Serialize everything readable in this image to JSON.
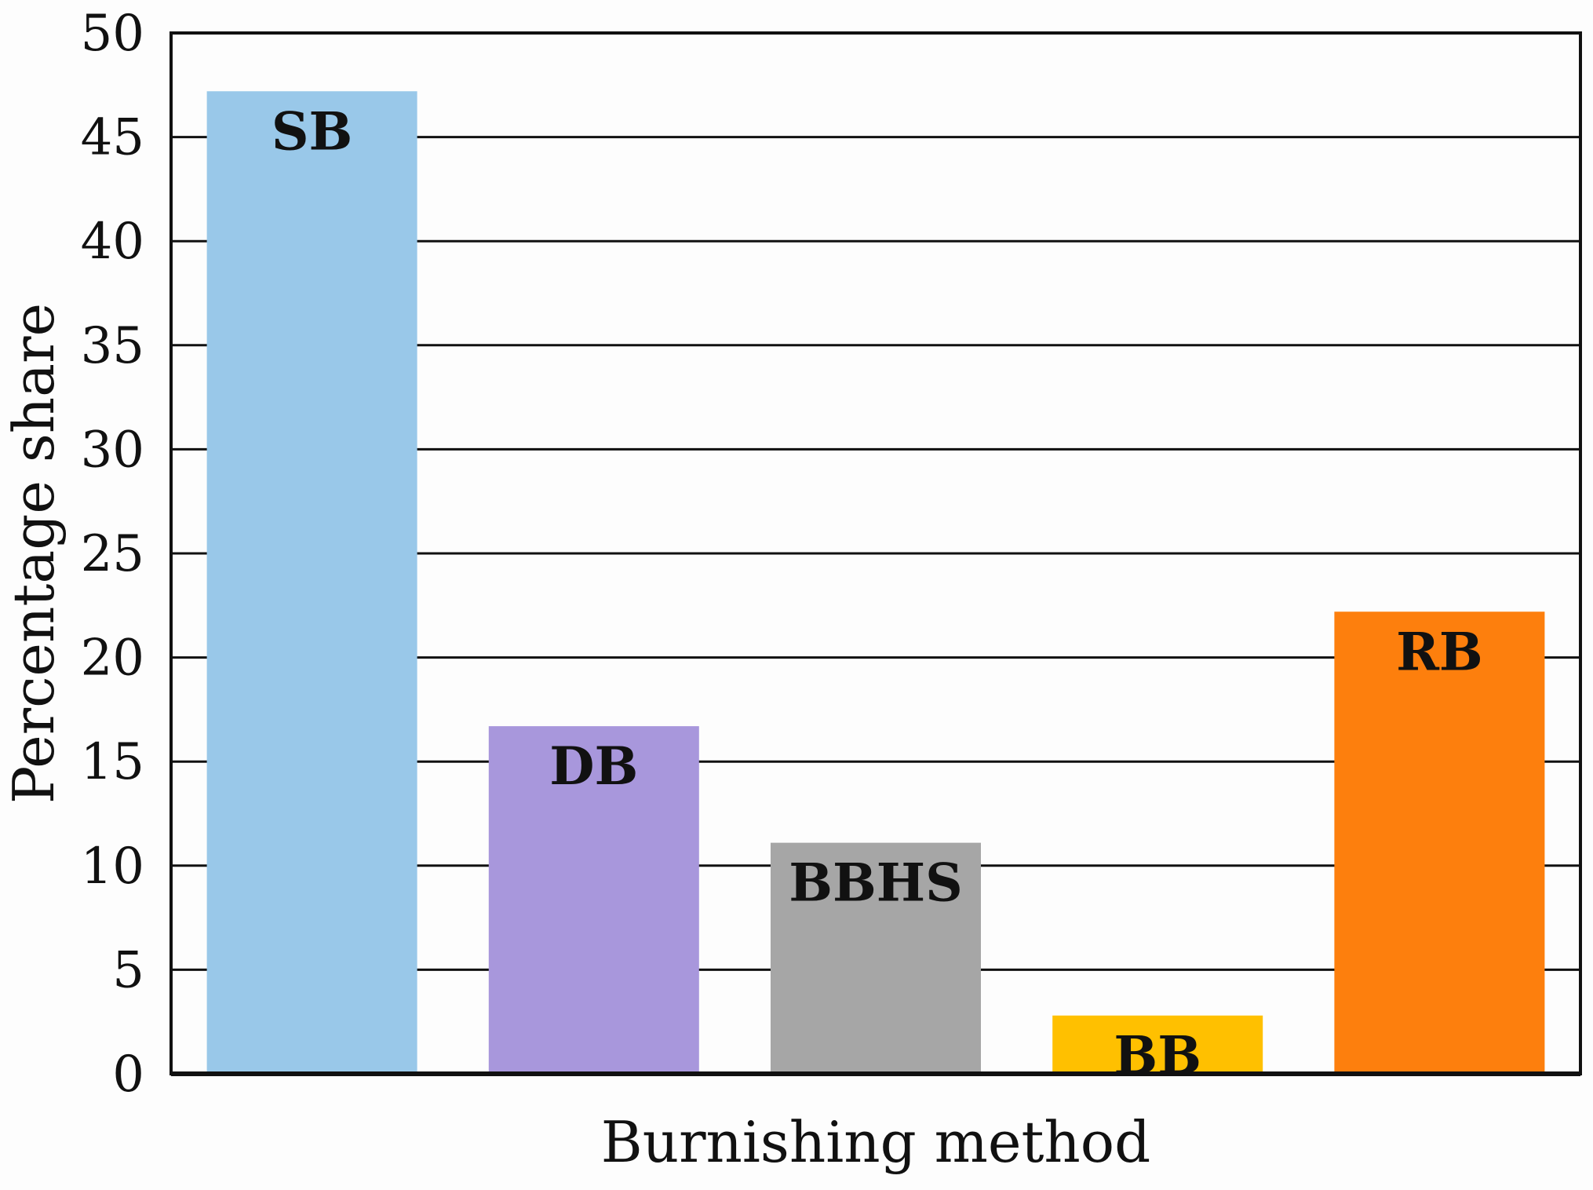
{
  "chart_data": {
    "type": "bar",
    "xlabel": "Burnishing method",
    "ylabel": "Percentage share",
    "ylim": [
      0,
      50
    ],
    "yticks": [
      0,
      5,
      10,
      15,
      20,
      25,
      30,
      35,
      40,
      45,
      50
    ],
    "grid": true,
    "categories": [
      "SB",
      "DB",
      "BBHS",
      "BB",
      "RB"
    ],
    "values": [
      47.2,
      16.7,
      11.1,
      2.8,
      22.2
    ],
    "colors": [
      "#99c8e9",
      "#a897dc",
      "#a6a6a6",
      "#ffc000",
      "#fd7f0d"
    ]
  }
}
